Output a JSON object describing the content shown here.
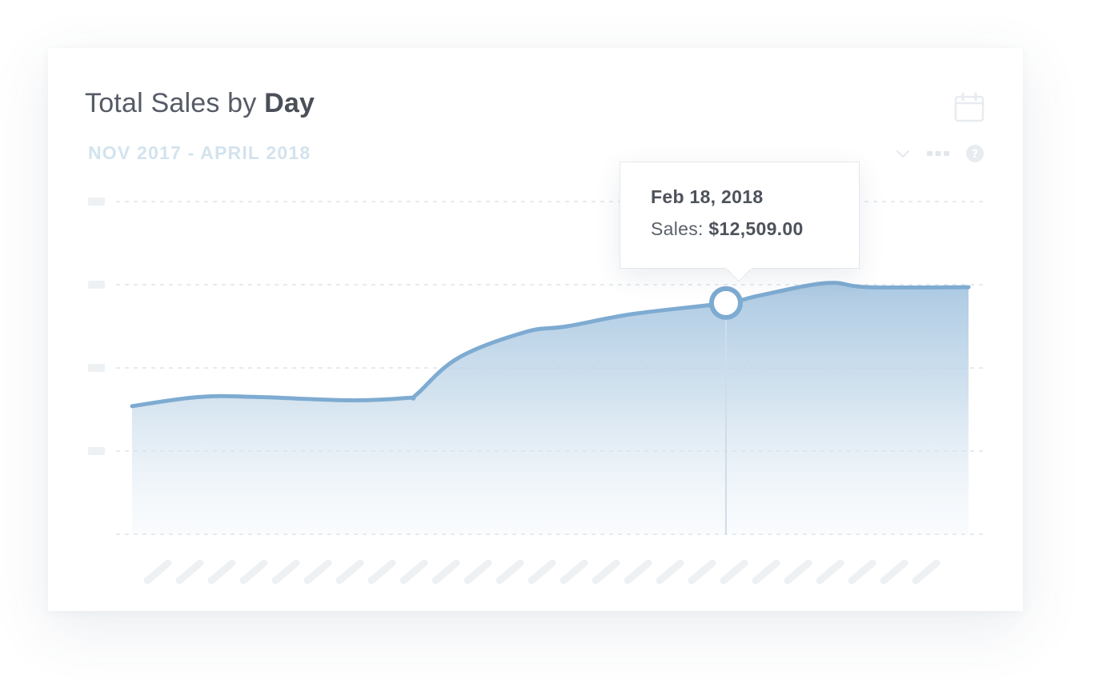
{
  "card": {
    "title_prefix": "Total Sales by ",
    "title_emphasis": "Day",
    "subtitle": "NOV 2017 - APRIL 2018"
  },
  "toolbar": {
    "icons": [
      "calendar-icon",
      "chevron-down-icon",
      "more-icon",
      "help-icon"
    ]
  },
  "tooltip": {
    "date": "Feb 18, 2018",
    "sales_label": "Sales: ",
    "sales_value": "$12,509.00"
  },
  "colors": {
    "line": "#7eabd1",
    "area_top": "#a9c7e1",
    "gridline": "#dde4ea",
    "placeholder": "#eef1f4",
    "subtitle": "#d3e3ee"
  },
  "chart_data": {
    "type": "area",
    "ylim": [
      0,
      4
    ],
    "grid": true,
    "y_tick_labels_redacted": true,
    "x_tick_labels_redacted": true,
    "x_tick_count": 25,
    "series": [
      {
        "points": [
          [
            0,
            1.54
          ],
          [
            0.08,
            1.65
          ],
          [
            0.15,
            1.65
          ],
          [
            0.26,
            1.61
          ],
          [
            0.33,
            1.64
          ],
          [
            0.34,
            1.68
          ],
          [
            0.39,
            2.12
          ],
          [
            0.47,
            2.43
          ],
          [
            0.52,
            2.5
          ],
          [
            0.6,
            2.65
          ],
          [
            0.71,
            2.78
          ],
          [
            0.75,
            2.87
          ],
          [
            0.83,
            3.02
          ],
          [
            0.88,
            2.97
          ],
          [
            1.0,
            2.97
          ]
        ]
      }
    ],
    "highlight": {
      "x": 0.71,
      "y": 2.78
    }
  }
}
